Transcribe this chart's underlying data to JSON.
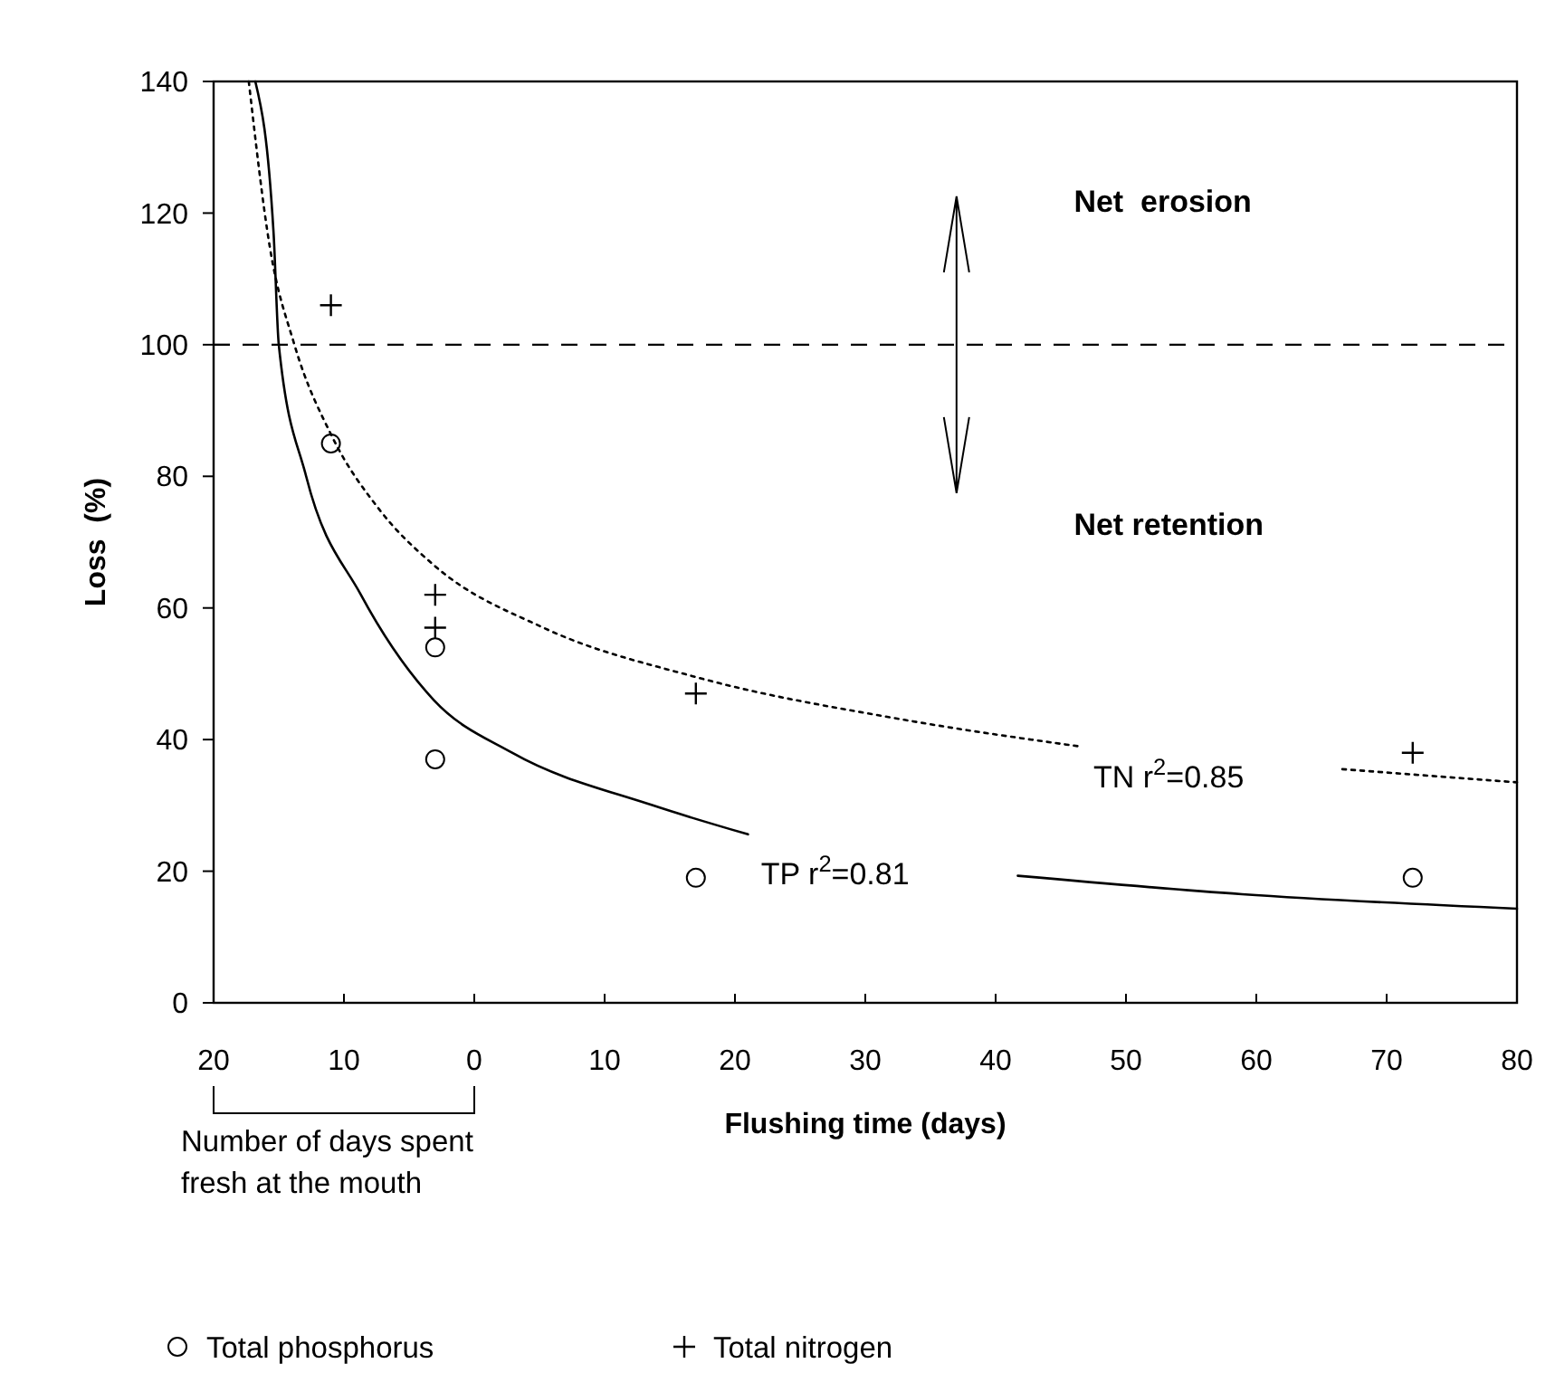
{
  "chart_data": {
    "type": "scatter",
    "xlabel": "Flushing time (days)",
    "ylabel": "Loss  (%)",
    "xlim": [
      -20,
      80
    ],
    "xticks": [
      {
        "value": -20,
        "label": "20"
      },
      {
        "value": -10,
        "label": "10"
      },
      0,
      10,
      20,
      30,
      40,
      50,
      60,
      70,
      80
    ],
    "ylim": [
      0,
      140
    ],
    "yticks": [
      0,
      20,
      40,
      60,
      80,
      100,
      120,
      140
    ],
    "series": [
      {
        "name": "Total phosphorus",
        "color": "#000000",
        "marker": "circle",
        "x": [
          -11,
          -3,
          -3,
          17,
          72
        ],
        "values": [
          85,
          54,
          37,
          19,
          19
        ]
      },
      {
        "name": "Total nitrogen",
        "color": "#000000",
        "marker": "cross",
        "x": [
          -11,
          -3,
          -3,
          17,
          72
        ],
        "values": [
          106,
          62,
          57,
          47,
          38
        ]
      },
      {
        "type": "line",
        "color": "#000000",
        "marker": "none",
        "line_style": "solid",
        "x": [
          -16.8,
          -15.4,
          -15,
          -12.9,
          -8.7,
          -3.1,
          2.9,
          13.7,
          21,
          30,
          41.7,
          58.9,
          80
        ],
        "values": [
          140,
          117,
          100,
          80,
          62,
          46,
          38,
          30,
          25.6,
          null,
          19.3,
          16.5,
          14.3
        ]
      },
      {
        "type": "line",
        "color": "#000000",
        "marker": "none",
        "line_style": "dotted",
        "x": [
          -17.3,
          -15.7,
          -13.8,
          -10.9,
          -7.3,
          -3.1,
          5.3,
          17,
          33,
          46.3,
          56,
          66.6,
          80
        ],
        "values": [
          140,
          115,
          100,
          86,
          75,
          66.5,
          57,
          49.5,
          43,
          39,
          null,
          35.5,
          33.5
        ]
      }
    ],
    "ref_lines": [
      {
        "axis": "y",
        "value": 100,
        "line_style": "dashed",
        "color": "#000000"
      }
    ],
    "annotations": [
      "Net  erosion",
      "Net retention",
      "TP r$^{2}$=0.81",
      "TN r$^{2}$=0.85",
      "Number of days spent fresh at the mouth"
    ],
    "legend": "bottom",
    "grid": false
  }
}
